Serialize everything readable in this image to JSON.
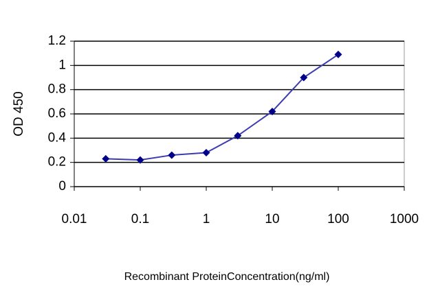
{
  "chart_data": {
    "type": "line",
    "xlabel": "Recombinant ProteinConcentration(ng/ml)",
    "ylabel": "OD 450",
    "x": [
      0.03,
      0.1,
      0.3,
      1,
      3,
      10,
      30,
      100
    ],
    "series": [
      {
        "color": "#00008b",
        "values": [
          0.23,
          0.22,
          0.26,
          0.28,
          0.42,
          0.62,
          0.9,
          1.09
        ]
      }
    ],
    "xscale": "log",
    "xlim": [
      0.01,
      1000
    ],
    "xticks": [
      0.01,
      0.1,
      1,
      10,
      100,
      1000
    ],
    "ylim": [
      0,
      1.2
    ],
    "yticks": [
      0,
      0.2,
      0.4,
      0.6,
      0.8,
      1,
      1.2
    ],
    "grid": true
  }
}
